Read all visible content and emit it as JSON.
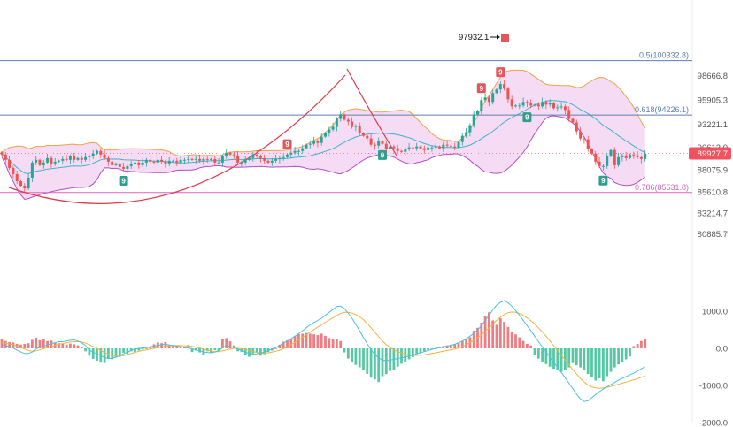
{
  "chart_data": [
    {
      "type": "candlestick",
      "price_axis_ticks": [
        "98666.8",
        "95905.3",
        "93221.1",
        "90612.0",
        "88075.9",
        "85610.8",
        "83214.7",
        "80885.7"
      ],
      "current_price": "89927.7",
      "peak_annotation": "97932.1",
      "fib_levels": [
        {
          "label": "0.5(100332.8)",
          "value": 100332.8,
          "color": "#5b7fb0"
        },
        {
          "label": "0.618(94226.1)",
          "value": 94226.1,
          "color": "#5b7fb0"
        },
        {
          "label": "0.786(85531.8)",
          "value": 85531.8,
          "color": "#d966c0"
        }
      ],
      "signal_markers": [
        "9",
        "9",
        "9",
        "9",
        "9",
        "9",
        "9"
      ],
      "colors": {
        "up": "#26a69a",
        "down": "#ef5350",
        "bollinger_fill": "#f3d6f2",
        "bollinger_upper": "#f0a24a",
        "bollinger_lower": "#b14fc2",
        "bollinger_mid": "#3bb5c9",
        "arc": "#e0394a",
        "price_badge": "#f05260"
      },
      "closes": [
        89800,
        89200,
        88300,
        87600,
        86800,
        86300,
        86000,
        87200,
        88900,
        89200,
        88600,
        88900,
        89400,
        88800,
        89000,
        89100,
        89300,
        89200,
        89600,
        89200,
        89400,
        89200,
        89500,
        89600,
        89900,
        90200,
        89800,
        89400,
        89000,
        88600,
        88800,
        88400,
        88200,
        88500,
        88700,
        88900,
        88600,
        88900,
        89200,
        89000,
        88900,
        89200,
        89000,
        88800,
        89100,
        89100,
        88900,
        89200,
        89200,
        89300,
        89200,
        89300,
        89100,
        89300,
        89200,
        89300,
        88900,
        88900,
        89600,
        90000,
        89800,
        89700,
        88900,
        88900,
        89200,
        89400,
        89800,
        89600,
        89400,
        89100,
        88900,
        89100,
        89300,
        89400,
        89500,
        89800,
        90000,
        90200,
        90200,
        90500,
        90900,
        91000,
        91300,
        91100,
        91800,
        92200,
        92600,
        92900,
        93800,
        94300,
        93700,
        93500,
        92900,
        93000,
        92200,
        91900,
        91600,
        90900,
        90800,
        91300,
        91000,
        90400,
        90700,
        90500,
        90200,
        90100,
        90400,
        90600,
        90500,
        90700,
        90500,
        90300,
        90600,
        90600,
        90700,
        90500,
        90900,
        90800,
        90700,
        90600,
        91200,
        91900,
        92300,
        93100,
        94300,
        94700,
        95900,
        96200,
        95700,
        96700,
        97100,
        97700,
        97200,
        96000,
        95200,
        95300,
        95300,
        95700,
        95600,
        95300,
        95400,
        95200,
        95700,
        95400,
        95600,
        95000,
        95100,
        95200,
        94800,
        93800,
        93400,
        92400,
        91600,
        91500,
        90400,
        89900,
        89000,
        88500,
        88500,
        89600,
        90300,
        88600,
        89500,
        89700,
        89400,
        89800,
        89700,
        89500,
        89300,
        89900
      ],
      "macd_histogram": [
        240,
        200,
        170,
        160,
        120,
        100,
        120,
        140,
        230,
        290,
        220,
        240,
        200,
        210,
        160,
        140,
        120,
        100,
        130,
        110,
        80,
        30,
        -80,
        -200,
        -290,
        -340,
        -390,
        -400,
        -280,
        -300,
        -250,
        -200,
        -120,
        -150,
        -80,
        -100,
        -60,
        -30,
        0,
        40,
        110,
        160,
        140,
        170,
        100,
        60,
        60,
        30,
        40,
        90,
        -100,
        -60,
        -110,
        -170,
        -80,
        -120,
        -50,
        -70,
        240,
        280,
        190,
        80,
        -80,
        -100,
        -180,
        -230,
        -140,
        -120,
        -200,
        -160,
        -100,
        -60,
        0,
        100,
        180,
        220,
        260,
        330,
        390,
        400,
        420,
        400,
        380,
        360,
        400,
        340,
        280,
        260,
        240,
        200,
        -110,
        -280,
        -380,
        -450,
        -520,
        -580,
        -700,
        -800,
        -850,
        -920,
        -760,
        -700,
        -620,
        -580,
        -500,
        -420,
        -380,
        -300,
        -240,
        -160,
        -120,
        -80,
        -40,
        -20,
        0,
        40,
        60,
        80,
        100,
        120,
        150,
        200,
        240,
        300,
        480,
        560,
        700,
        880,
        980,
        760,
        640,
        820,
        720,
        580,
        460,
        380,
        300,
        200,
        120,
        80,
        -180,
        -280,
        -360,
        -430,
        -500,
        -560,
        -600,
        -640,
        -580,
        -520,
        -400,
        -460,
        -520,
        -600,
        -700,
        -780,
        -880,
        -820,
        -900,
        -760,
        -640,
        -520,
        -440,
        -380,
        -300,
        -220,
        60,
        120,
        200,
        260
      ],
      "macd_line": [
        100,
        70,
        50,
        10,
        -50,
        -100,
        -140,
        -140,
        -100,
        -20,
        30,
        70,
        90,
        130,
        150,
        180,
        180,
        200,
        220,
        230,
        200,
        150,
        80,
        -50,
        -100,
        -150,
        -200,
        -250,
        -280,
        -270,
        -240,
        -200,
        -150,
        -100,
        -60,
        -20,
        0,
        10,
        20,
        40,
        60,
        80,
        100,
        110,
        90,
        80,
        60,
        40,
        30,
        10,
        -10,
        -40,
        -70,
        -100,
        -110,
        -120,
        -100,
        -60,
        20,
        70,
        50,
        20,
        -20,
        -60,
        -100,
        -140,
        -160,
        -150,
        -130,
        -100,
        -60,
        -20,
        20,
        80,
        140,
        200,
        260,
        330,
        400,
        480,
        560,
        640,
        700,
        760,
        820,
        900,
        980,
        1060,
        1140,
        1150,
        1080,
        960,
        820,
        650,
        480,
        300,
        120,
        -40,
        -160,
        -260,
        -320,
        -340,
        -320,
        -300,
        -280,
        -260,
        -240,
        -210,
        -180,
        -150,
        -120,
        -90,
        -60,
        -30,
        0,
        20,
        40,
        60,
        80,
        110,
        150,
        200,
        260,
        330,
        410,
        500,
        620,
        760,
        900,
        1050,
        1180,
        1250,
        1300,
        1240,
        1150,
        1030,
        900,
        760,
        620,
        480,
        330,
        180,
        40,
        -100,
        -240,
        -380,
        -520,
        -660,
        -800,
        -950,
        -1100,
        -1250,
        -1380,
        -1450,
        -1430,
        -1350,
        -1260,
        -1180,
        -1110,
        -1050,
        -990,
        -930,
        -870,
        -820,
        -770,
        -720,
        -680,
        -620,
        -560,
        -500
      ],
      "signal_line": [
        150,
        140,
        120,
        100,
        60,
        20,
        -20,
        -60,
        -80,
        -70,
        -40,
        -10,
        20,
        50,
        80,
        110,
        130,
        150,
        170,
        180,
        180,
        170,
        140,
        100,
        50,
        0,
        -60,
        -110,
        -160,
        -200,
        -220,
        -220,
        -200,
        -170,
        -140,
        -110,
        -80,
        -60,
        -40,
        -20,
        0,
        20,
        40,
        60,
        70,
        80,
        80,
        75,
        70,
        60,
        50,
        30,
        10,
        -20,
        -50,
        -70,
        -90,
        -90,
        -70,
        -40,
        -20,
        0,
        0,
        -10,
        -30,
        -60,
        -90,
        -110,
        -130,
        -130,
        -120,
        -100,
        -80,
        -50,
        -10,
        40,
        100,
        160,
        230,
        300,
        370,
        440,
        510,
        580,
        640,
        710,
        770,
        830,
        890,
        950,
        980,
        980,
        960,
        920,
        860,
        780,
        680,
        560,
        440,
        320,
        200,
        100,
        20,
        -40,
        -90,
        -130,
        -160,
        -180,
        -190,
        -190,
        -185,
        -175,
        -160,
        -140,
        -120,
        -100,
        -80,
        -60,
        -40,
        -20,
        10,
        50,
        100,
        160,
        220,
        290,
        370,
        460,
        560,
        660,
        760,
        850,
        920,
        970,
        990,
        980,
        950,
        900,
        830,
        750,
        660,
        560,
        450,
        330,
        200,
        70,
        -60,
        -190,
        -320,
        -450,
        -580,
        -700,
        -820,
        -920,
        -1000,
        -1050,
        -1080,
        -1090,
        -1080,
        -1060,
        -1040,
        -1010,
        -980,
        -950,
        -920,
        -890,
        -860,
        -830,
        -790,
        -750
      ],
      "macd_axis_ticks": [
        "1000.0",
        "0.0",
        "-1000.0",
        "-2000.0"
      ]
    }
  ]
}
